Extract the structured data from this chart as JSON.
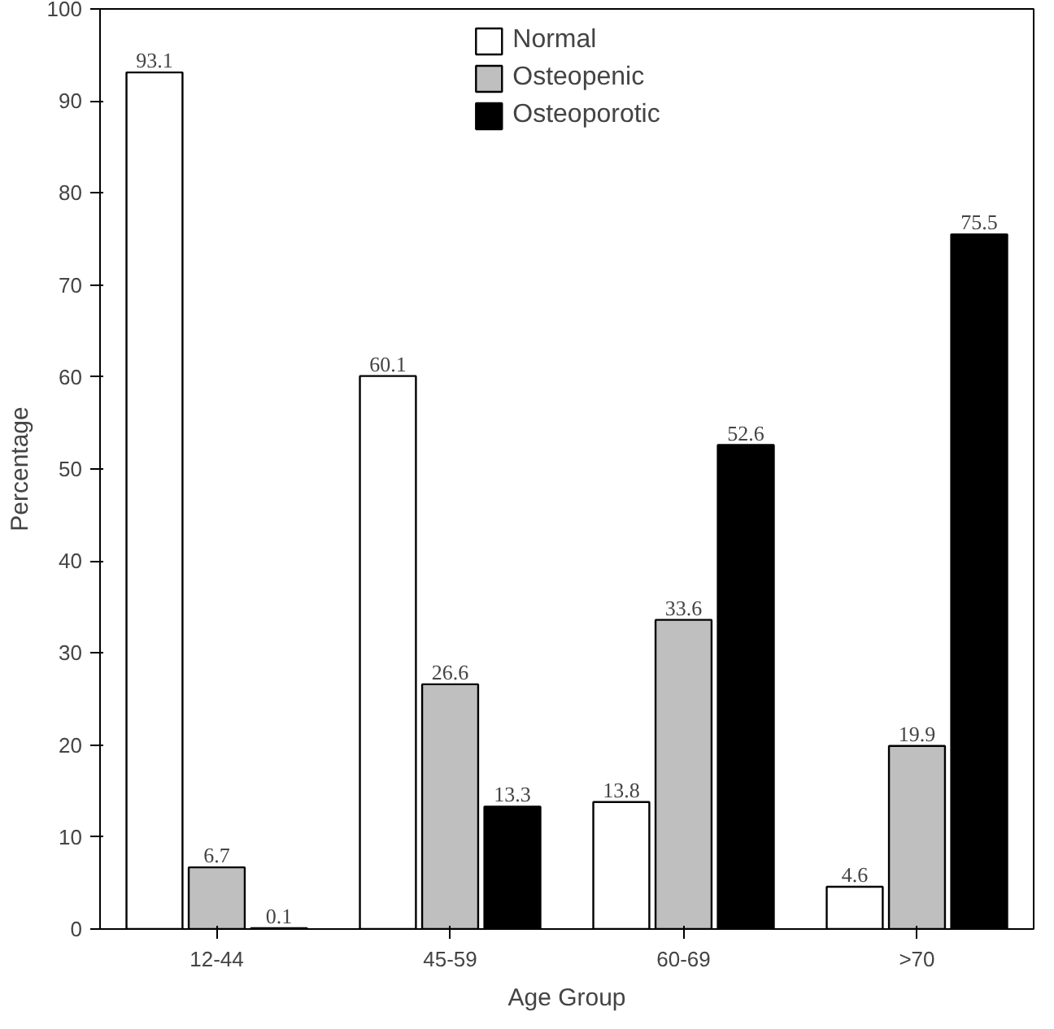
{
  "chart_data": {
    "type": "bar",
    "xlabel": "Age Group",
    "ylabel": "Percentage",
    "categories": [
      "12-44",
      "45-59",
      "60-69",
      ">70"
    ],
    "series": [
      {
        "name": "Normal",
        "color": "#ffffff",
        "values": [
          93.1,
          60.1,
          13.8,
          4.6
        ]
      },
      {
        "name": "Osteopenic",
        "color": "#bfbfbf",
        "values": [
          6.7,
          26.6,
          33.6,
          19.9
        ]
      },
      {
        "name": "Osteoporotic",
        "color": "#000000",
        "values": [
          0.1,
          13.3,
          52.6,
          75.5
        ]
      }
    ],
    "ylim": [
      0,
      100
    ],
    "yticks": [
      0,
      10,
      20,
      30,
      40,
      50,
      60,
      70,
      80,
      90,
      100
    ],
    "data_labels": true,
    "legend": "top",
    "grid": false
  }
}
